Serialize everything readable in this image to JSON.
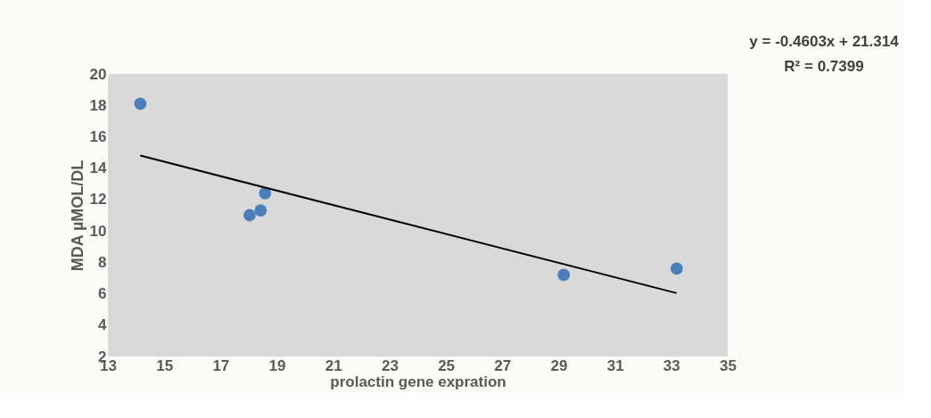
{
  "chart_data": {
    "type": "scatter",
    "xlabel": "prolactin gene expration",
    "ylabel": "MDA µMOL/DL",
    "annotations": [
      "y = -0.4603x + 21.314",
      "R² = 0.7399"
    ],
    "xlim": [
      13,
      35
    ],
    "xticks": [
      13,
      15,
      17,
      19,
      21,
      23,
      25,
      27,
      29,
      31,
      33,
      35
    ],
    "ylim": [
      2,
      20
    ],
    "yticks": [
      2,
      4,
      6,
      8,
      10,
      12,
      14,
      16,
      18,
      20
    ],
    "grid": false,
    "marker": "circle",
    "series": [
      {
        "color": "#4a7ebb",
        "x": [
          14.15,
          18.03,
          18.42,
          18.58,
          29.18,
          33.19
        ],
        "values": [
          18.1,
          11.0,
          11.3,
          12.4,
          7.2,
          7.6
        ]
      },
      {
        "type": "line",
        "color": "#000000",
        "line_style": "solid",
        "marker": "none",
        "x": [
          14.15,
          33.19
        ],
        "values": [
          14.8,
          6.04
        ]
      }
    ]
  }
}
